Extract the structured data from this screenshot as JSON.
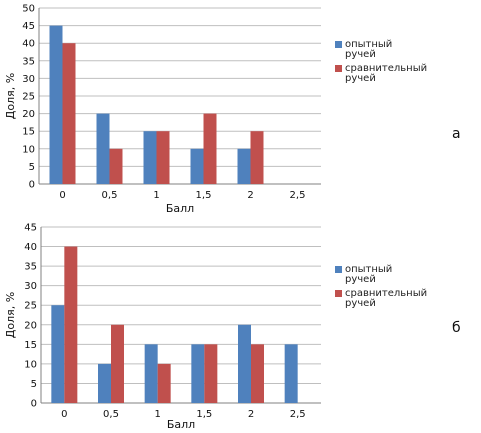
{
  "chart_data": [
    {
      "type": "bar",
      "panel_label": "а",
      "categories": [
        "0",
        "0,5",
        "1",
        "1,5",
        "2",
        "2,5"
      ],
      "series": [
        {
          "name": "опытный ручей",
          "legend_lines": [
            "опытный",
            "ручей"
          ],
          "color": "#4F81BD",
          "values": [
            45,
            20,
            15,
            10,
            10,
            0
          ]
        },
        {
          "name": "сравнительный ручей",
          "legend_lines": [
            "сравнительный",
            "ручей"
          ],
          "color": "#C0504D",
          "values": [
            40,
            10,
            15,
            20,
            15,
            0
          ]
        }
      ],
      "xlabel": "Балл",
      "ylabel": "Доля, %",
      "ylim": [
        0,
        50
      ],
      "yticks": [
        0,
        5,
        10,
        15,
        20,
        25,
        30,
        35,
        40,
        45,
        50
      ],
      "grid": true,
      "legend": "right"
    },
    {
      "type": "bar",
      "panel_label": "б",
      "categories": [
        "0",
        "0,5",
        "1",
        "1,5",
        "2",
        "2,5"
      ],
      "series": [
        {
          "name": "опытный ручей",
          "legend_lines": [
            "опытный",
            "ручей"
          ],
          "color": "#4F81BD",
          "values": [
            25,
            10,
            15,
            15,
            20,
            15
          ]
        },
        {
          "name": "сравнительный ручей",
          "legend_lines": [
            "сравнительный",
            "ручей"
          ],
          "color": "#C0504D",
          "values": [
            40,
            20,
            10,
            15,
            15,
            0
          ]
        }
      ],
      "xlabel": "Балл",
      "ylabel": "Доля, %",
      "ylim": [
        0,
        45
      ],
      "yticks": [
        0,
        5,
        10,
        15,
        20,
        25,
        30,
        35,
        40,
        45
      ],
      "grid": true,
      "legend": "right"
    }
  ]
}
